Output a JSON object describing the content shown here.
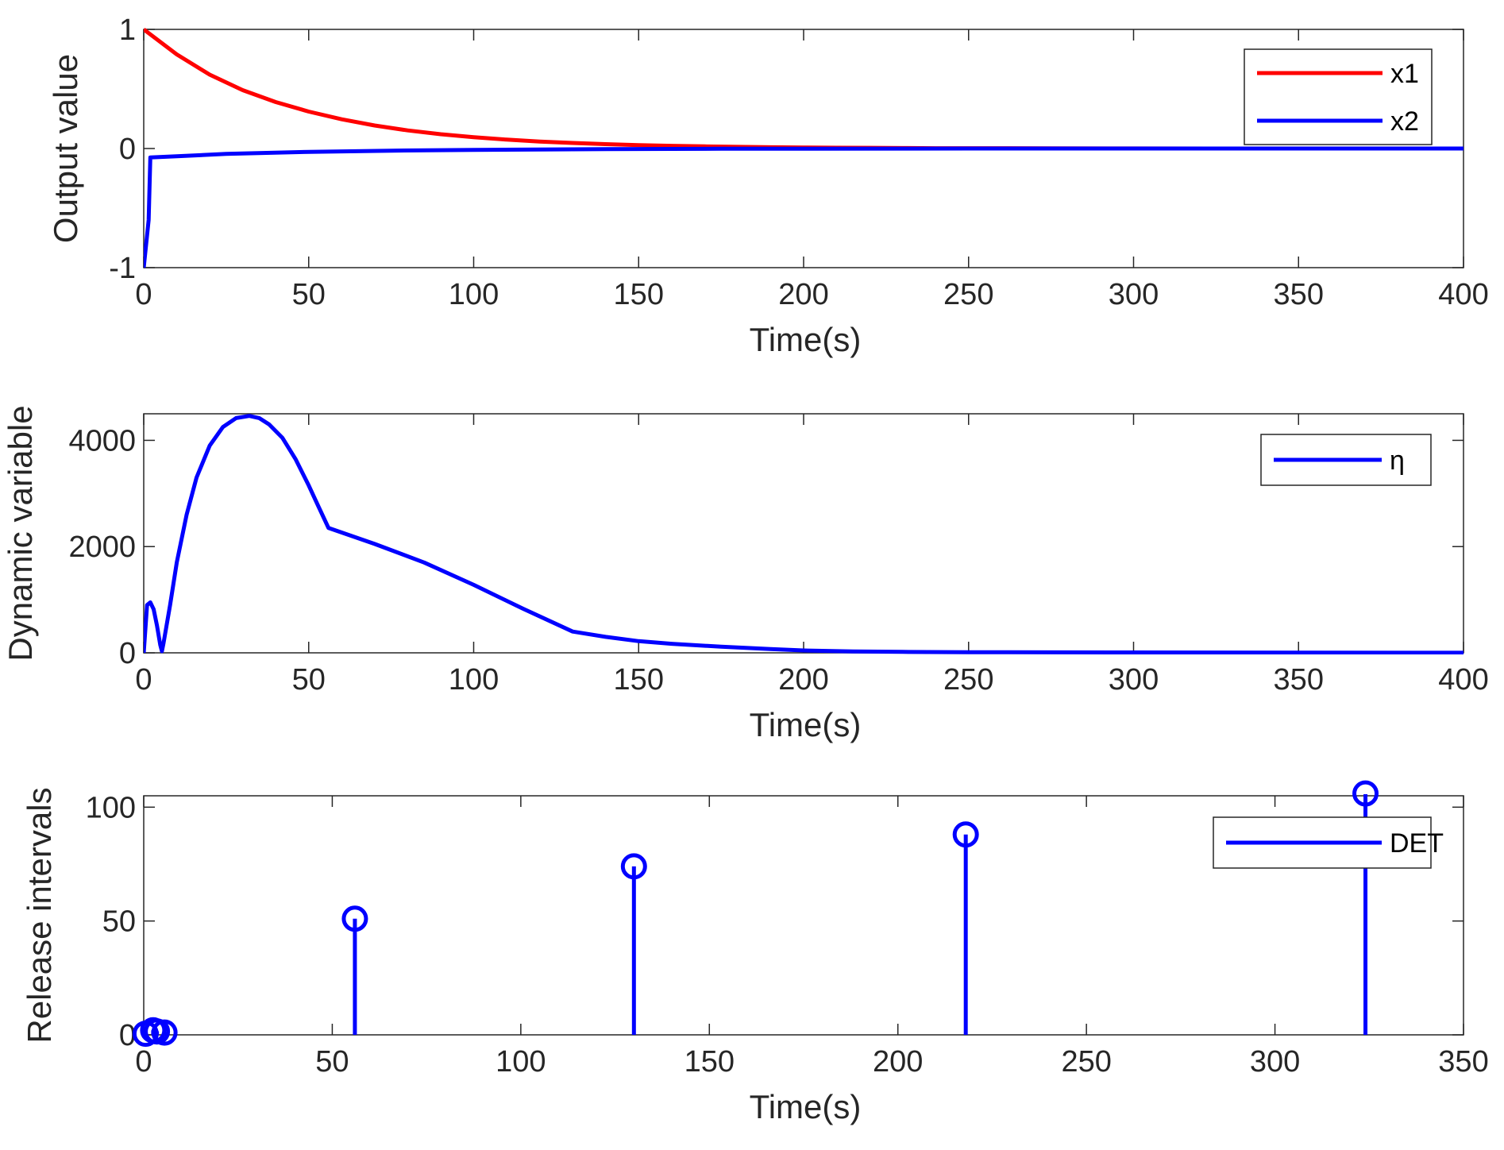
{
  "chart_data": [
    {
      "type": "line",
      "xlabel": "Time(s)",
      "ylabel": "Output value",
      "xlim": [
        0,
        400
      ],
      "ylim": [
        -1,
        1
      ],
      "xticks": [
        0,
        50,
        100,
        150,
        200,
        250,
        300,
        350,
        400
      ],
      "yticks": [
        -1,
        0,
        1
      ],
      "tick_labels_x": [
        "0",
        "50",
        "100",
        "150",
        "200",
        "250",
        "300",
        "350",
        "400"
      ],
      "tick_labels_y": [
        "-1",
        "0",
        "1"
      ],
      "legend_position": "top-right",
      "series": [
        {
          "name": "x1",
          "color": "#ff0000",
          "x": [
            0,
            10,
            20,
            30,
            40,
            50,
            60,
            70,
            80,
            90,
            100,
            110,
            120,
            130,
            140,
            150,
            160,
            170,
            180,
            190,
            200,
            210,
            220,
            230,
            240,
            250,
            275,
            300,
            325,
            350,
            375,
            400
          ],
          "y": [
            1.0,
            0.79,
            0.62,
            0.49,
            0.39,
            0.31,
            0.245,
            0.193,
            0.152,
            0.12,
            0.095,
            0.075,
            0.059,
            0.047,
            0.037,
            0.029,
            0.023,
            0.018,
            0.014,
            0.011,
            0.009,
            0.007,
            0.006,
            0.004,
            0.003,
            0.003,
            0.002,
            0.001,
            0.0,
            0.0,
            0.0,
            0.0
          ]
        },
        {
          "name": "x2",
          "color": "#0000ff",
          "x": [
            0,
            1.5,
            2,
            10,
            25,
            50,
            75,
            100,
            125,
            150,
            175,
            200,
            250,
            300,
            350,
            400
          ],
          "y": [
            -1.0,
            -0.6,
            -0.075,
            -0.065,
            -0.045,
            -0.028,
            -0.018,
            -0.011,
            -0.007,
            -0.004,
            -0.002,
            -0.001,
            0.0,
            0.0,
            0.0,
            0.0
          ]
        }
      ]
    },
    {
      "type": "line",
      "xlabel": "Time(s)",
      "ylabel": "Dynamic variable",
      "xlim": [
        0,
        400
      ],
      "ylim": [
        0,
        4500
      ],
      "xticks": [
        0,
        50,
        100,
        150,
        200,
        250,
        300,
        350,
        400
      ],
      "yticks": [
        0,
        2000,
        4000
      ],
      "tick_labels_x": [
        "0",
        "50",
        "100",
        "150",
        "200",
        "250",
        "300",
        "350",
        "400"
      ],
      "tick_labels_y": [
        "0",
        "2000",
        "4000"
      ],
      "legend_position": "top-right",
      "series": [
        {
          "name": "η",
          "color": "#0000ff",
          "x": [
            0,
            1,
            2,
            3,
            4,
            5,
            5.5,
            6,
            8,
            10,
            13,
            16,
            20,
            24,
            28,
            32,
            35,
            38,
            42,
            46,
            50,
            53,
            56,
            70,
            85,
            100,
            115,
            130,
            140,
            150,
            160,
            175,
            190,
            200,
            215,
            230,
            250,
            300,
            350,
            400
          ],
          "y": [
            0,
            900,
            950,
            820,
            520,
            150,
            30,
            180,
            900,
            1700,
            2600,
            3300,
            3900,
            4250,
            4420,
            4460,
            4420,
            4300,
            4050,
            3650,
            3150,
            2750,
            2350,
            2050,
            1700,
            1280,
            830,
            400,
            300,
            220,
            170,
            115,
            70,
            45,
            25,
            18,
            12,
            7,
            4,
            1
          ]
        }
      ]
    },
    {
      "type": "stem",
      "xlabel": "Time(s)",
      "ylabel": "Release intervals",
      "xlim": [
        0,
        350
      ],
      "ylim": [
        0,
        105
      ],
      "xticks": [
        0,
        50,
        100,
        150,
        200,
        250,
        300,
        350
      ],
      "yticks": [
        0,
        50,
        100
      ],
      "tick_labels_x": [
        "0",
        "50",
        "100",
        "150",
        "200",
        "250",
        "300",
        "350"
      ],
      "tick_labels_y": [
        "0",
        "50",
        "100"
      ],
      "legend_position": "top-right",
      "series": [
        {
          "name": "DET",
          "color": "#0000ff",
          "x": [
            0.5,
            2.5,
            3.5,
            5.5,
            56,
            130,
            218,
            324
          ],
          "y": [
            0.5,
            2,
            1.5,
            1,
            51,
            74,
            88,
            106
          ]
        }
      ]
    }
  ]
}
